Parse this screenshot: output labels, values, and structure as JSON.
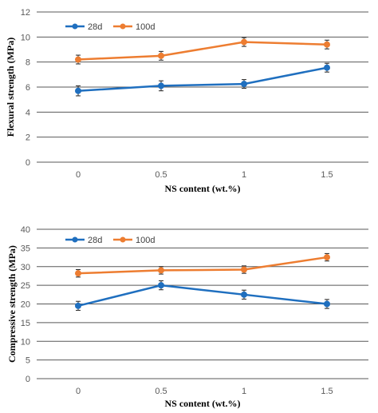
{
  "chart_data": [
    {
      "type": "line",
      "xlabel": "NS content (wt.%)",
      "ylabel": "Flexural strength (MPa)",
      "categories": [
        "0",
        "0.5",
        "1",
        "1.5"
      ],
      "ylim": [
        0,
        12
      ],
      "yticks": [
        0,
        2,
        4,
        6,
        8,
        10,
        12
      ],
      "grid": true,
      "legend_position": "top-left",
      "series": [
        {
          "name": "28d",
          "color": "#1F6FBF",
          "values": [
            5.7,
            6.1,
            6.25,
            7.55
          ],
          "errors": [
            0.4,
            0.4,
            0.35,
            0.35
          ]
        },
        {
          "name": "100d",
          "color": "#ED7D31",
          "values": [
            8.2,
            8.5,
            9.6,
            9.4
          ],
          "errors": [
            0.35,
            0.35,
            0.35,
            0.35
          ]
        }
      ]
    },
    {
      "type": "line",
      "xlabel": "NS content (wt.%)",
      "ylabel": "Compressive strength (MPa)",
      "categories": [
        "0",
        "0.5",
        "1",
        "1.5"
      ],
      "ylim": [
        0,
        40
      ],
      "yticks": [
        0,
        5,
        10,
        15,
        20,
        25,
        30,
        35,
        40
      ],
      "grid": true,
      "legend_position": "top-left",
      "series": [
        {
          "name": "28d",
          "color": "#1F6FBF",
          "values": [
            19.5,
            25.0,
            22.5,
            20.0
          ],
          "errors": [
            1.2,
            1.2,
            1.2,
            1.2
          ]
        },
        {
          "name": "100d",
          "color": "#ED7D31",
          "values": [
            28.2,
            29.0,
            29.2,
            32.5
          ],
          "errors": [
            1.0,
            1.0,
            1.0,
            1.0
          ]
        }
      ]
    }
  ]
}
